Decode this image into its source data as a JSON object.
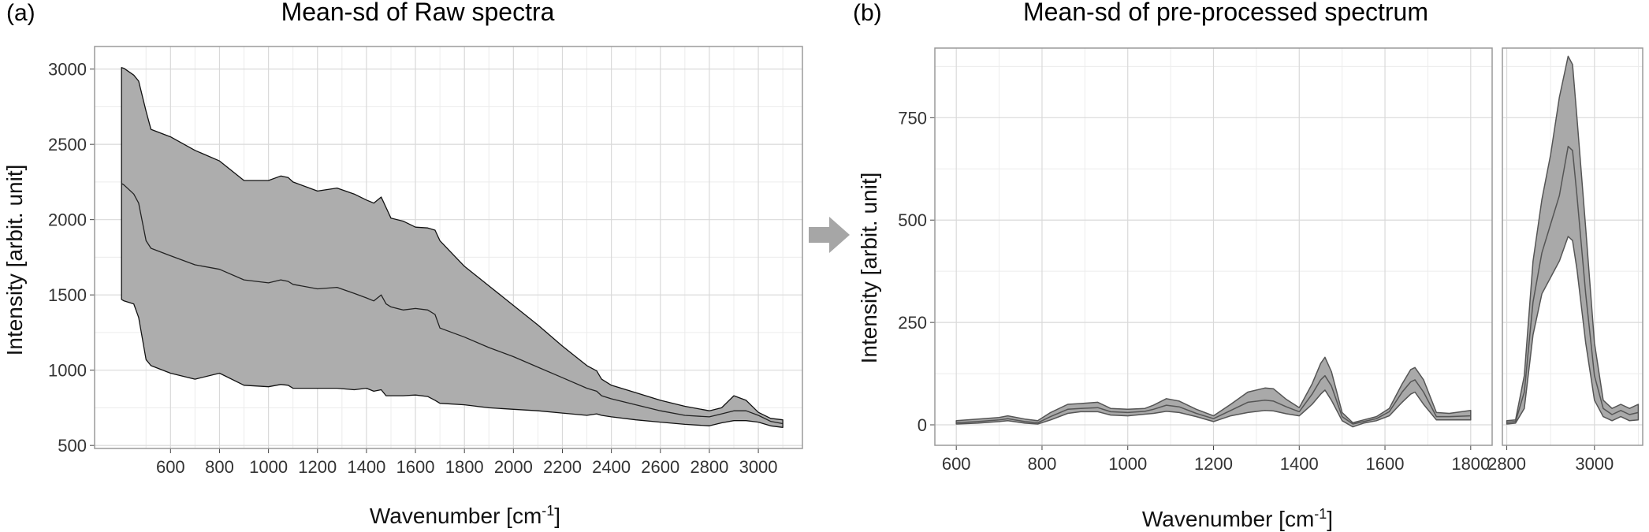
{
  "figure": {
    "arrow_color": "#a6a6a6"
  },
  "panels": [
    {
      "label": "(a)",
      "title": "Mean-sd of Raw spectra",
      "xlabel": "Wavenumber [cm",
      "xlabel_sup": "-1",
      "xlabel_close": "]",
      "ylabel": "Intensity [arbit. unit]"
    },
    {
      "label": "(b)",
      "title": "Mean-sd of pre-processed spectrum",
      "xlabel": "Wavenumber [cm",
      "xlabel_sup": "-1",
      "xlabel_close": "]",
      "ylabel": "Intensity [arbit. unit]"
    }
  ],
  "chart_data": [
    {
      "type": "area",
      "panel": "(a)",
      "title": "Mean-sd of Raw spectra",
      "xlabel": "Wavenumber [cm-1]",
      "ylabel": "Intensity [arbit. unit]",
      "xlim": [
        290,
        3180
      ],
      "ylim": [
        480,
        3150
      ],
      "xticks": [
        600,
        800,
        1000,
        1200,
        1400,
        1600,
        1800,
        2000,
        2200,
        2400,
        2600,
        2800,
        3000
      ],
      "yticks": [
        500,
        1000,
        1500,
        2000,
        2500,
        3000
      ],
      "grid": true,
      "fill_color": "#adadad",
      "x": [
        400,
        410,
        450,
        470,
        500,
        520,
        600,
        700,
        800,
        900,
        1000,
        1050,
        1080,
        1100,
        1200,
        1280,
        1350,
        1400,
        1430,
        1460,
        1480,
        1500,
        1550,
        1600,
        1650,
        1680,
        1700,
        1800,
        1900,
        2000,
        2100,
        2200,
        2300,
        2340,
        2360,
        2400,
        2500,
        2600,
        2700,
        2800,
        2850,
        2900,
        2950,
        3000,
        3050,
        3100
      ],
      "upper": [
        3010,
        3005,
        2960,
        2920,
        2720,
        2600,
        2550,
        2460,
        2390,
        2260,
        2260,
        2290,
        2280,
        2250,
        2190,
        2210,
        2170,
        2130,
        2110,
        2150,
        2080,
        2010,
        1990,
        1950,
        1945,
        1930,
        1860,
        1690,
        1560,
        1430,
        1300,
        1160,
        1030,
        995,
        940,
        900,
        850,
        800,
        760,
        730,
        750,
        830,
        800,
        720,
        680,
        670
      ],
      "mean": [
        2240,
        2230,
        2170,
        2110,
        1860,
        1810,
        1760,
        1700,
        1670,
        1600,
        1580,
        1600,
        1590,
        1570,
        1540,
        1550,
        1510,
        1480,
        1460,
        1500,
        1440,
        1420,
        1400,
        1410,
        1400,
        1370,
        1280,
        1220,
        1150,
        1090,
        1020,
        950,
        880,
        860,
        830,
        810,
        770,
        730,
        700,
        690,
        710,
        730,
        730,
        700,
        660,
        645
      ],
      "lower": [
        1470,
        1460,
        1440,
        1350,
        1070,
        1030,
        980,
        940,
        980,
        900,
        890,
        905,
        900,
        880,
        880,
        880,
        870,
        880,
        860,
        870,
        830,
        830,
        830,
        835,
        825,
        800,
        780,
        770,
        750,
        740,
        730,
        715,
        700,
        710,
        700,
        690,
        670,
        655,
        640,
        630,
        650,
        665,
        665,
        655,
        630,
        620
      ]
    },
    {
      "type": "area",
      "panel": "(b) left",
      "xlabel": "Wavenumber [cm-1]",
      "ylabel": "Intensity [arbit. unit]",
      "xlim": [
        550,
        1850
      ],
      "ylim": [
        -50,
        920
      ],
      "xticks": [
        600,
        800,
        1000,
        1200,
        1400,
        1600,
        1800
      ],
      "yticks": [
        0,
        250,
        500,
        750
      ],
      "grid": true,
      "fill_color": "#a9a9a9",
      "x": [
        600,
        650,
        700,
        720,
        760,
        790,
        820,
        860,
        890,
        930,
        960,
        1000,
        1040,
        1060,
        1090,
        1120,
        1160,
        1200,
        1240,
        1280,
        1320,
        1340,
        1370,
        1400,
        1430,
        1450,
        1460,
        1475,
        1500,
        1525,
        1550,
        1580,
        1610,
        1640,
        1660,
        1670,
        1690,
        1720,
        1750,
        1800
      ],
      "upper": [
        10,
        14,
        18,
        22,
        14,
        10,
        30,
        50,
        52,
        55,
        40,
        38,
        40,
        48,
        64,
        58,
        38,
        22,
        50,
        80,
        90,
        88,
        62,
        42,
        100,
        150,
        165,
        130,
        30,
        5,
        12,
        20,
        40,
        100,
        135,
        140,
        110,
        30,
        28,
        35
      ],
      "mean": [
        5,
        8,
        12,
        15,
        8,
        5,
        20,
        38,
        40,
        42,
        32,
        30,
        33,
        38,
        48,
        44,
        28,
        15,
        35,
        55,
        60,
        58,
        44,
        32,
        75,
        110,
        120,
        95,
        20,
        2,
        8,
        15,
        32,
        80,
        105,
        110,
        80,
        20,
        20,
        22
      ],
      "lower": [
        2,
        4,
        8,
        10,
        4,
        2,
        12,
        28,
        32,
        32,
        24,
        22,
        26,
        28,
        33,
        30,
        20,
        8,
        22,
        30,
        35,
        34,
        27,
        22,
        50,
        75,
        85,
        60,
        10,
        -5,
        4,
        10,
        22,
        55,
        75,
        80,
        50,
        12,
        12,
        12
      ]
    },
    {
      "type": "area",
      "panel": "(b) right",
      "xlabel": "Wavenumber [cm-1]",
      "xlim": [
        2790,
        3110
      ],
      "ylim": [
        -50,
        920
      ],
      "xticks": [
        2800,
        3000
      ],
      "yticks": [
        0,
        250,
        500,
        750
      ],
      "grid": true,
      "fill_color": "#a9a9a9",
      "x": [
        2800,
        2820,
        2840,
        2860,
        2880,
        2900,
        2920,
        2940,
        2950,
        2960,
        2980,
        3000,
        3020,
        3040,
        3060,
        3080,
        3100
      ],
      "upper": [
        10,
        12,
        120,
        400,
        550,
        660,
        800,
        900,
        880,
        750,
        480,
        200,
        60,
        40,
        50,
        40,
        50
      ],
      "mean": [
        6,
        8,
        80,
        300,
        420,
        490,
        560,
        680,
        670,
        560,
        320,
        120,
        40,
        25,
        35,
        25,
        30
      ],
      "lower": [
        2,
        4,
        40,
        220,
        320,
        360,
        400,
        460,
        450,
        380,
        200,
        60,
        20,
        10,
        20,
        10,
        12
      ]
    }
  ]
}
